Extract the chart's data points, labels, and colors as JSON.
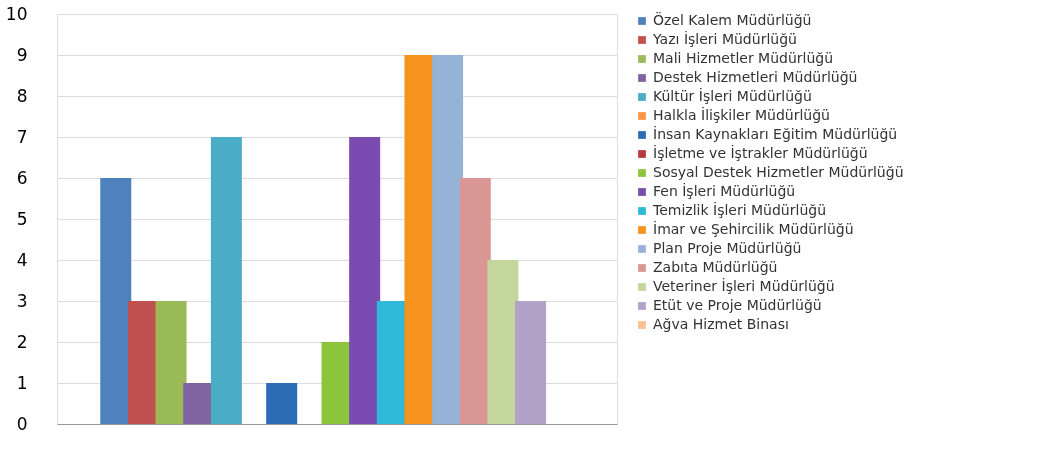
{
  "chart_data": {
    "type": "bar",
    "categories": [
      null
    ],
    "ylim": [
      0,
      10
    ],
    "yticks": [
      0,
      1,
      2,
      3,
      4,
      5,
      6,
      7,
      8,
      9,
      10
    ],
    "grid": "y",
    "legend": "right",
    "series": [
      {
        "name": "Özel Kalem Müdürlüğü",
        "color": "#4f81bd",
        "values": [
          6
        ]
      },
      {
        "name": "Yazı İşleri Müdürlüğü",
        "color": "#c0504d",
        "values": [
          3
        ]
      },
      {
        "name": "Mali Hizmetler Müdürlüğü",
        "color": "#9bbb59",
        "values": [
          3
        ]
      },
      {
        "name": "Destek Hizmetleri Müdürlüğü",
        "color": "#8064a2",
        "values": [
          1
        ]
      },
      {
        "name": "Kültür İşleri Müdürlüğü",
        "color": "#4bacc6",
        "values": [
          7
        ]
      },
      {
        "name": "Halkla İlişkiler Müdürlüğü",
        "color": "#f79646",
        "values": [
          0
        ]
      },
      {
        "name": "İnsan Kaynakları  Eğitim Müdürlüğü",
        "color": "#2c6bb5",
        "values": [
          1
        ]
      },
      {
        "name": "İşletme ve İştrakler Müdürlüğü",
        "color": "#b83a3a",
        "values": [
          0
        ]
      },
      {
        "name": "Sosyal Destek Hizmetler Müdürlüğü",
        "color": "#8cc43c",
        "values": [
          2
        ]
      },
      {
        "name": "Fen İşleri Müdürlüğü",
        "color": "#7a4bb0",
        "values": [
          7
        ]
      },
      {
        "name": "Temizlik İşleri Müdürlüğü",
        "color": "#2fb8d8",
        "values": [
          3
        ]
      },
      {
        "name": "İmar ve Şehircilik Müdürlüğü",
        "color": "#f5931e",
        "values": [
          9
        ]
      },
      {
        "name": "Plan Proje Müdürlüğü",
        "color": "#95b3d7",
        "values": [
          9
        ]
      },
      {
        "name": "Zabıta Müdürlüğü",
        "color": "#d99694",
        "values": [
          6
        ]
      },
      {
        "name": "Veteriner İşleri Müdürlüğü",
        "color": "#c3d69b",
        "values": [
          4
        ]
      },
      {
        "name": "Etüt ve Proje Müdürlüğü",
        "color": "#b3a2c7",
        "values": [
          3
        ]
      },
      {
        "name": "Ağva Hizmet Binası",
        "color": "#fac090",
        "values": [
          0
        ]
      }
    ]
  }
}
